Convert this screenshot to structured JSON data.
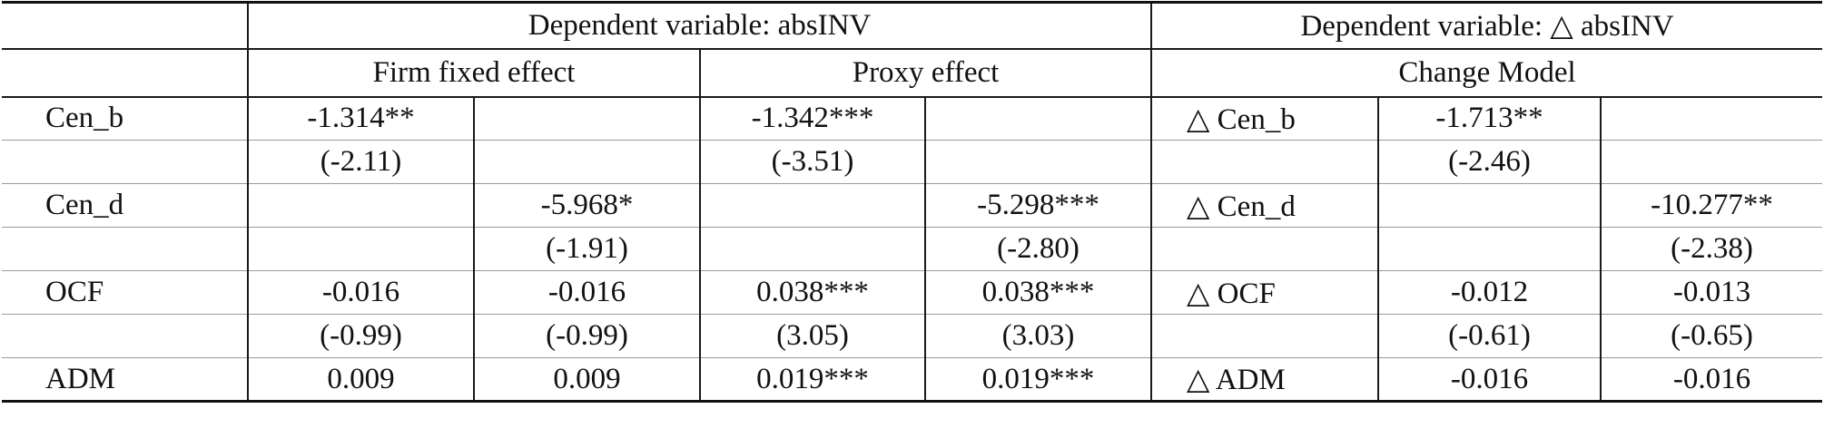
{
  "header": {
    "dep_var_abs": "Dependent variable: absINV",
    "dep_var_change": "Dependent variable: △ absINV",
    "firm_fixed": "Firm fixed effect",
    "proxy": "Proxy effect",
    "change_model": "Change Model"
  },
  "rows": [
    {
      "label": "Cen_b",
      "c1": "-1.314**",
      "c2": "",
      "c3": "-1.342***",
      "c4": "",
      "label2": "△ Cen_b",
      "c5": "-1.713**",
      "c6": ""
    },
    {
      "label": "",
      "c1": "(-2.11)",
      "c2": "",
      "c3": "(-3.51)",
      "c4": "",
      "label2": "",
      "c5": "(-2.46)",
      "c6": ""
    },
    {
      "label": "Cen_d",
      "c1": "",
      "c2": "-5.968*",
      "c3": "",
      "c4": "-5.298***",
      "label2": "△ Cen_d",
      "c5": "",
      "c6": "-10.277**"
    },
    {
      "label": "",
      "c1": "",
      "c2": "(-1.91)",
      "c3": "",
      "c4": "(-2.80)",
      "label2": "",
      "c5": "",
      "c6": "(-2.38)"
    },
    {
      "label": "OCF",
      "c1": "-0.016",
      "c2": "-0.016",
      "c3": "0.038***",
      "c4": "0.038***",
      "label2": "△ OCF",
      "c5": "-0.012",
      "c6": "-0.013"
    },
    {
      "label": "",
      "c1": "(-0.99)",
      "c2": "(-0.99)",
      "c3": "(3.05)",
      "c4": "(3.03)",
      "label2": "",
      "c5": "(-0.61)",
      "c6": "(-0.65)"
    },
    {
      "label": "ADM",
      "c1": "0.009",
      "c2": "0.009",
      "c3": "0.019***",
      "c4": "0.019***",
      "label2": "△ ADM",
      "c5": "-0.016",
      "c6": "-0.016"
    }
  ]
}
